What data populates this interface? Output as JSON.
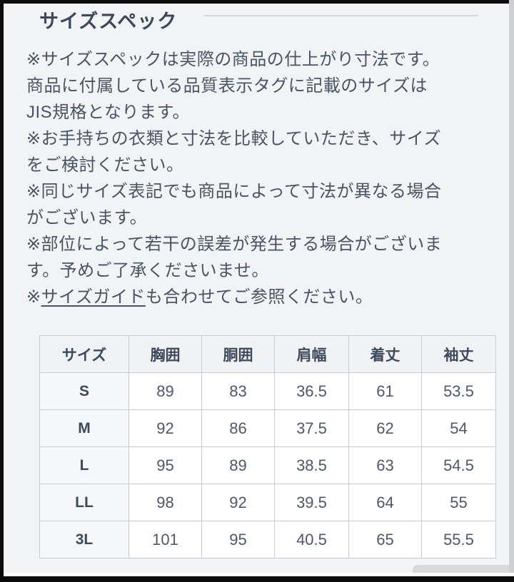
{
  "header": {
    "title": "サイズスペック"
  },
  "notes": {
    "items": [
      "※サイズスペックは実際の商品の仕上がり寸法です。\n商品に付属している品質表示タグに記載のサイズは\nJIS規格となります。",
      "※お手持ちの衣類と寸法を比較していただき、サイズ\nをご検討ください。",
      "※同じサイズ表記でも商品によって寸法が異なる場合\nがございます。",
      "※部位によって若干の誤差が発生する場合がございま\nす。予めご了承くださいませ。"
    ],
    "guide_prefix": "※",
    "guide_link": "サイズガイド",
    "guide_suffix": "も合わせてご参照ください。"
  },
  "size_table": {
    "headers": [
      "サイズ",
      "胸囲",
      "胴囲",
      "肩幅",
      "着丈",
      "袖丈"
    ],
    "rows": [
      {
        "size": "S",
        "values": [
          "89",
          "83",
          "36.5",
          "61",
          "53.5"
        ]
      },
      {
        "size": "M",
        "values": [
          "92",
          "86",
          "37.5",
          "62",
          "54"
        ]
      },
      {
        "size": "L",
        "values": [
          "95",
          "89",
          "38.5",
          "63",
          "54.5"
        ]
      },
      {
        "size": "LL",
        "values": [
          "98",
          "92",
          "39.5",
          "64",
          "55"
        ]
      },
      {
        "size": "3L",
        "values": [
          "101",
          "95",
          "40.5",
          "65",
          "55.5"
        ]
      }
    ]
  },
  "colors": {
    "page_background": "#f2f3f5",
    "frame": "#0b0b0b",
    "heading_text": "#3d4757",
    "body_text": "#4a5462",
    "table_border": "#c6ccd2",
    "table_header_background": "#f1f2f4",
    "table_size_column_background": "#f6f7f8",
    "scrollbar_thumb": "#d8dadc"
  }
}
